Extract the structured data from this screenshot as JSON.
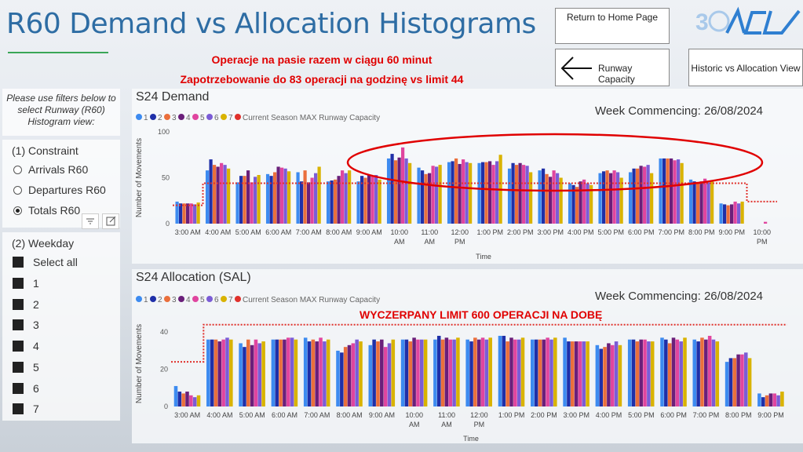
{
  "header": {
    "title": "R60 Demand vs Allocation Histograms",
    "note_line1": "Operacje na pasie razem w ciągu 60 minut",
    "note_line2": "Zapotrzebowanie do 83 operacji na godzinę vs limit 44",
    "home_button": "Return to Home Page",
    "runway_button": "Runway Capacity",
    "historic_button": "Historic vs Allocation View",
    "logo_text": "30 ACL"
  },
  "filters": {
    "intro": "Please use filters below to select Runway (R60) Histogram view:",
    "constraint_title": "(1) Constraint",
    "constraint_options": [
      {
        "label": "Arrivals R60",
        "selected": false
      },
      {
        "label": "Departures R60",
        "selected": false
      },
      {
        "label": "Totals R60",
        "selected": true
      }
    ],
    "weekday_title": "(2) Weekday",
    "weekday_options": [
      "Select all",
      "1",
      "2",
      "3",
      "4",
      "5",
      "6",
      "7"
    ]
  },
  "demand": {
    "title": "S24 Demand",
    "week": "Week Commencing: 26/08/2024"
  },
  "allocation": {
    "title": "S24 Allocation (SAL)",
    "week": "Week Commencing: 26/08/2024",
    "annotation": "WYCZERPANY LIMIT 600 OPERACJI NA DOBĘ"
  },
  "colors": {
    "series": [
      "#3d8bf0",
      "#1f2fa8",
      "#ea6f3c",
      "#6a1f7a",
      "#e0459f",
      "#7b5cd6",
      "#d9b300"
    ],
    "capacity": "#e0312c",
    "accent": "#2e6da4"
  },
  "chart_data": [
    {
      "type": "bar",
      "title": "S24 Demand",
      "xlabel": "Time",
      "ylabel": "Number of Movements",
      "ylim": [
        0,
        100
      ],
      "yticks": [
        0,
        50,
        100
      ],
      "legend": [
        "1",
        "2",
        "3",
        "4",
        "5",
        "6",
        "7",
        "Current Season MAX Runway Capacity"
      ],
      "categories": [
        "3:00 AM",
        "4:00 AM",
        "5:00 AM",
        "6:00 AM",
        "7:00 AM",
        "8:00 AM",
        "9:00 AM",
        "10:00 AM",
        "11:00 AM",
        "12:00 PM",
        "1:00 PM",
        "2:00 PM",
        "3:00 PM",
        "4:00 PM",
        "5:00 PM",
        "6:00 PM",
        "7:00 PM",
        "8:00 PM",
        "9:00 PM",
        "10:00 PM"
      ],
      "series": [
        {
          "name": "1",
          "values": [
            24,
            58,
            45,
            54,
            56,
            46,
            46,
            71,
            61,
            67,
            66,
            60,
            58,
            44,
            55,
            56,
            71,
            48,
            22,
            0
          ]
        },
        {
          "name": "2",
          "values": [
            22,
            70,
            52,
            52,
            46,
            47,
            52,
            76,
            58,
            68,
            67,
            66,
            60,
            42,
            57,
            60,
            71,
            46,
            21,
            0
          ]
        },
        {
          "name": "3",
          "values": [
            22,
            64,
            52,
            56,
            58,
            48,
            50,
            69,
            54,
            71,
            67,
            64,
            54,
            40,
            58,
            60,
            71,
            45,
            20,
            0
          ]
        },
        {
          "name": "4",
          "values": [
            22,
            62,
            58,
            62,
            45,
            52,
            53,
            72,
            55,
            65,
            68,
            66,
            51,
            46,
            55,
            63,
            71,
            46,
            21,
            0
          ]
        },
        {
          "name": "5",
          "values": [
            22,
            66,
            45,
            61,
            50,
            58,
            52,
            83,
            63,
            70,
            64,
            64,
            58,
            48,
            58,
            62,
            69,
            49,
            24,
            2
          ]
        },
        {
          "name": "6",
          "values": [
            21,
            64,
            51,
            60,
            55,
            55,
            53,
            71,
            62,
            67,
            68,
            63,
            55,
            44,
            56,
            64,
            70,
            45,
            22,
            0
          ]
        },
        {
          "name": "7",
          "values": [
            23,
            60,
            53,
            57,
            62,
            58,
            48,
            66,
            64,
            66,
            75,
            56,
            50,
            42,
            50,
            55,
            66,
            47,
            24,
            0
          ]
        }
      ],
      "capacity": [
        20,
        44,
        44,
        44,
        44,
        44,
        44,
        44,
        44,
        44,
        44,
        44,
        44,
        44,
        44,
        44,
        44,
        44,
        44,
        24
      ]
    },
    {
      "type": "bar",
      "title": "S24 Allocation (SAL)",
      "xlabel": "Time",
      "ylabel": "Number of Movements",
      "ylim": [
        0,
        46
      ],
      "yticks": [
        0,
        20,
        40
      ],
      "legend": [
        "1",
        "2",
        "3",
        "4",
        "5",
        "6",
        "7",
        "Current Season MAX Runway Capacity"
      ],
      "categories": [
        "3:00 AM",
        "4:00 AM",
        "5:00 AM",
        "6:00 AM",
        "7:00 AM",
        "8:00 AM",
        "9:00 AM",
        "10:00 AM",
        "11:00 AM",
        "12:00 PM",
        "1:00 PM",
        "2:00 PM",
        "3:00 PM",
        "4:00 PM",
        "5:00 PM",
        "6:00 PM",
        "7:00 PM",
        "8:00 PM",
        "9:00 PM"
      ],
      "series": [
        {
          "name": "1",
          "values": [
            11,
            36,
            34,
            36,
            37,
            30,
            33,
            36,
            36,
            36,
            38,
            36,
            37,
            33,
            36,
            37,
            36,
            24,
            7
          ]
        },
        {
          "name": "2",
          "values": [
            8,
            36,
            32,
            36,
            35,
            29,
            36,
            36,
            38,
            35,
            38,
            36,
            35,
            31,
            36,
            36,
            35,
            26,
            5
          ]
        },
        {
          "name": "3",
          "values": [
            7,
            36,
            36,
            36,
            36,
            32,
            35,
            35,
            36,
            37,
            35,
            36,
            35,
            32,
            35,
            34,
            37,
            26,
            6
          ]
        },
        {
          "name": "4",
          "values": [
            8,
            35,
            33,
            36,
            35,
            33,
            36,
            37,
            37,
            36,
            37,
            36,
            35,
            34,
            36,
            37,
            36,
            28,
            7
          ]
        },
        {
          "name": "5",
          "values": [
            6,
            36,
            36,
            37,
            37,
            34,
            32,
            36,
            36,
            37,
            36,
            37,
            35,
            33,
            36,
            36,
            38,
            28,
            7
          ]
        },
        {
          "name": "6",
          "values": [
            5,
            37,
            34,
            37,
            35,
            36,
            34,
            36,
            36,
            36,
            36,
            36,
            35,
            35,
            35,
            35,
            36,
            29,
            6
          ]
        },
        {
          "name": "7",
          "values": [
            6,
            36,
            35,
            36,
            36,
            35,
            36,
            36,
            37,
            37,
            37,
            37,
            35,
            33,
            35,
            37,
            35,
            26,
            8
          ]
        }
      ],
      "capacity": [
        24,
        44,
        44,
        44,
        44,
        44,
        44,
        44,
        44,
        44,
        44,
        44,
        44,
        44,
        44,
        44,
        44,
        44,
        44
      ]
    }
  ]
}
